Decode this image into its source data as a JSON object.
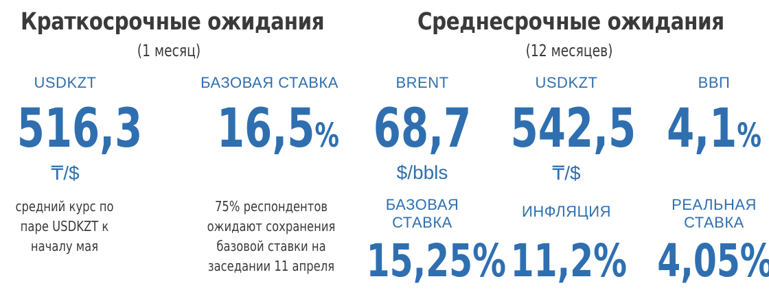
{
  "short_term": {
    "title": "Краткосрочные ожидания",
    "subtitle": "(1 месяц)",
    "usdkzt": {
      "label": "USDKZT",
      "value": "516,3",
      "unit": "₸/$",
      "note": "средний курс по паре USDKZT к началу мая"
    },
    "base_rate": {
      "label": "БАЗОВАЯ СТАВКА",
      "value": "16,5",
      "suffix": "%",
      "note": "75% респондентов ожидают сохранения базовой ставки на заседании 11 апреля"
    }
  },
  "mid_term": {
    "title": "Среднесрочные ожидания",
    "subtitle": "(12 месяцев)",
    "brent": {
      "label": "BRENT",
      "value": "68,7",
      "unit": "$/bbls"
    },
    "usdkzt": {
      "label": "USDKZT",
      "value": "542,5",
      "unit": "₸/$"
    },
    "gdp": {
      "label": "ВВП",
      "value": "4,1",
      "suffix": "%"
    },
    "base_rate": {
      "label_line1": "БАЗОВАЯ",
      "label_line2": "СТАВКА",
      "value": "15,25%"
    },
    "inflation": {
      "label": "ИНФЛЯЦИЯ",
      "value": "11,2%"
    },
    "real_rate": {
      "label_line1": "РЕАЛЬНАЯ",
      "label_line2": "СТАВКА",
      "value": "4,05%"
    }
  }
}
